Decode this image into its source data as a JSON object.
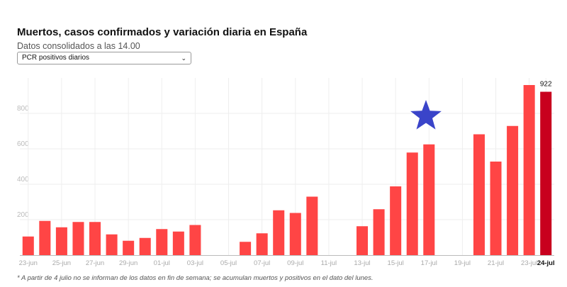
{
  "header": {
    "title": "Muertos, casos confirmados y variación diaria en España",
    "subtitle": "Datos consolidados a las 14.00"
  },
  "selector": {
    "selected": "PCR positivos diarios"
  },
  "footnote": "* A partir de 4 julio no se informan de los datos en fin de semana; se acumulan muertos y positivos en el dato del lunes.",
  "colors": {
    "bar": "#ff4545",
    "bar_highlight": "#c8001e",
    "star": "#3a44c9"
  },
  "annotation": {
    "icon": "star-icon"
  },
  "chart_data": {
    "type": "bar",
    "title": "Muertos, casos confirmados y variación diaria en España",
    "xlabel": "",
    "ylabel": "",
    "ylim": [
      0,
      960
    ],
    "yticks": [
      200,
      400,
      600,
      800
    ],
    "grid": true,
    "categories": [
      "23-jun",
      "24-jun",
      "25-jun",
      "26-jun",
      "27-jun",
      "28-jun",
      "29-jun",
      "30-jun",
      "01-jul",
      "02-jul",
      "03-jul",
      "04-jul",
      "05-jul",
      "06-jul",
      "07-jul",
      "08-jul",
      "09-jul",
      "10-jul",
      "11-jul",
      "12-jul",
      "13-jul",
      "14-jul",
      "15-jul",
      "16-jul",
      "17-jul",
      "18-jul",
      "19-jul",
      "20-jul",
      "21-jul",
      "22-jul",
      "23-jul",
      "24-jul"
    ],
    "values": [
      105,
      193,
      157,
      187,
      187,
      117,
      81,
      97,
      147,
      133,
      170,
      0,
      0,
      75,
      123,
      253,
      238,
      330,
      0,
      0,
      163,
      259,
      388,
      579,
      625,
      0,
      0,
      682,
      528,
      729,
      960,
      922
    ],
    "tick_labels": [
      "23-jun",
      "25-jun",
      "27-jun",
      "29-jun",
      "01-jul",
      "03-jul",
      "05-jul",
      "07-jul",
      "09-jul",
      "11-jul",
      "13-jul",
      "15-jul",
      "17-jul",
      "19-jul",
      "21-jul",
      "23-jul",
      "24-jul"
    ],
    "highlight_category": "24-jul",
    "data_labels": [
      {
        "category": "24-jul",
        "text": "922"
      }
    ]
  }
}
